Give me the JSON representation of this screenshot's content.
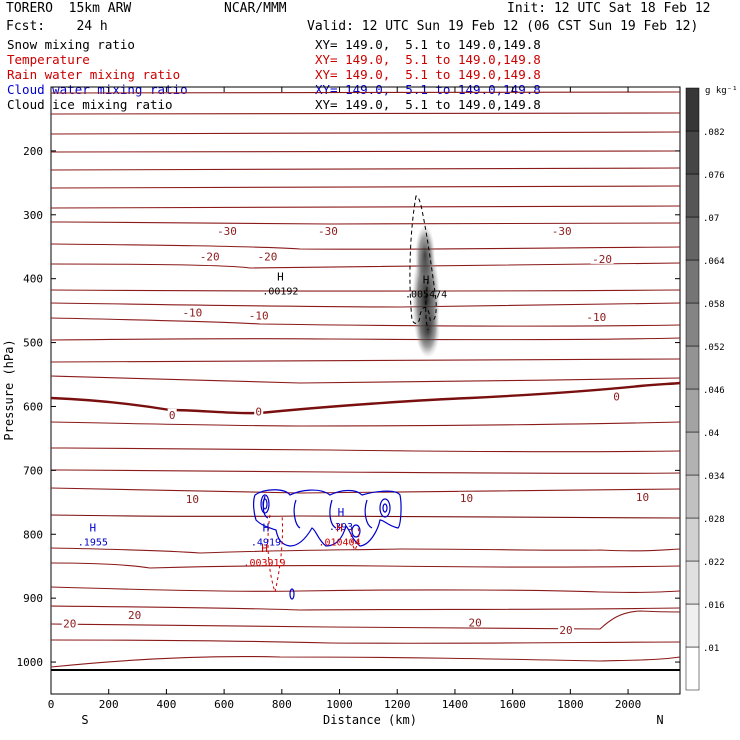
{
  "header": {
    "model": "TORERO  15km ARW",
    "org": "NCAR/MMM",
    "init": "Init: 12 UTC Sat 18 Feb 12",
    "fcst": "Fcst:    24 h",
    "valid": "Valid: 12 UTC Sun 19 Feb 12 (06 CST Sun 19 Feb 12)"
  },
  "legend": [
    {
      "name": "Snow mixing ratio",
      "color": "#000000",
      "xy": "XY= 149.0,  5.1 to 149.0,149.8"
    },
    {
      "name": "Temperature",
      "color": "#cc0000",
      "xy": "XY= 149.0,  5.1 to 149.0,149.8"
    },
    {
      "name": "Rain water mixing ratio",
      "color": "#cc0000",
      "xy": "XY= 149.0,  5.1 to 149.0,149.8"
    },
    {
      "name": "Cloud water mixing ratio",
      "color": "#0000cc",
      "xy": "XY= 149.0,  5.1 to 149.0,149.8"
    },
    {
      "name": "Cloud ice mixing ratio",
      "color": "#000000",
      "xy": "XY= 149.0,  5.1 to 149.0,149.8"
    }
  ],
  "chart_data": {
    "type": "contour cross-section",
    "xlabel": "Distance (km)",
    "ylabel": "Pressure (hPa)",
    "xlim": [
      0,
      2180
    ],
    "ylim": [
      1050,
      100
    ],
    "x_ticks": [
      0,
      200,
      400,
      600,
      800,
      1000,
      1200,
      1400,
      1600,
      1800,
      2000
    ],
    "y_ticks": [
      200,
      300,
      400,
      500,
      600,
      700,
      800,
      900,
      1000
    ],
    "x_end_labels": {
      "left": "S",
      "right": "N"
    },
    "colorbar": {
      "units": "g kg⁻¹",
      "labels": [
        ".01",
        ".016",
        ".022",
        ".028",
        ".034",
        ".04",
        ".046",
        ".052",
        ".058",
        ".064",
        ".07",
        ".076",
        ".082"
      ]
    },
    "temperature_labels": [
      {
        "text": "-30",
        "x": 610,
        "p": 325
      },
      {
        "text": "-30",
        "x": 960,
        "p": 325
      },
      {
        "text": "-30",
        "x": 1770,
        "p": 325
      },
      {
        "text": "-20",
        "x": 550,
        "p": 365
      },
      {
        "text": "-20",
        "x": 750,
        "p": 365
      },
      {
        "text": "-20",
        "x": 1910,
        "p": 369
      },
      {
        "text": "-10",
        "x": 490,
        "p": 453
      },
      {
        "text": "-10",
        "x": 720,
        "p": 458
      },
      {
        "text": "-10",
        "x": 1890,
        "p": 460
      },
      {
        "text": "0",
        "x": 420,
        "p": 613
      },
      {
        "text": "0",
        "x": 720,
        "p": 608
      },
      {
        "text": "0",
        "x": 1960,
        "p": 584
      },
      {
        "text": "10",
        "x": 490,
        "p": 745
      },
      {
        "text": "10",
        "x": 1440,
        "p": 743
      },
      {
        "text": "10",
        "x": 2050,
        "p": 742
      },
      {
        "text": "20",
        "x": 65,
        "p": 940
      },
      {
        "text": "20",
        "x": 290,
        "p": 926
      },
      {
        "text": "20",
        "x": 1470,
        "p": 938
      },
      {
        "text": "20",
        "x": 1785,
        "p": 950
      }
    ],
    "maxima": [
      {
        "label": "H",
        "value": ".00192",
        "x": 795,
        "p": 415,
        "color": "#000000"
      },
      {
        "label": "H",
        "value": ".005474",
        "x": 1300,
        "p": 420,
        "color": "#000000"
      },
      {
        "label": "H",
        "value": ".1955",
        "x": 145,
        "p": 808,
        "color": "#0000cc"
      },
      {
        "label": "H",
        "value": ".4919",
        "x": 745,
        "p": 808,
        "color": "#0000cc"
      },
      {
        "label": "H",
        "value": ".393",
        "x": 1005,
        "p": 784,
        "color": "#0000cc"
      },
      {
        "label": "H",
        "value": ".003919",
        "x": 740,
        "p": 840,
        "color": "#cc0000"
      },
      {
        "label": "H",
        "value": ".010404",
        "x": 1000,
        "p": 808,
        "color": "#cc0000"
      }
    ]
  }
}
